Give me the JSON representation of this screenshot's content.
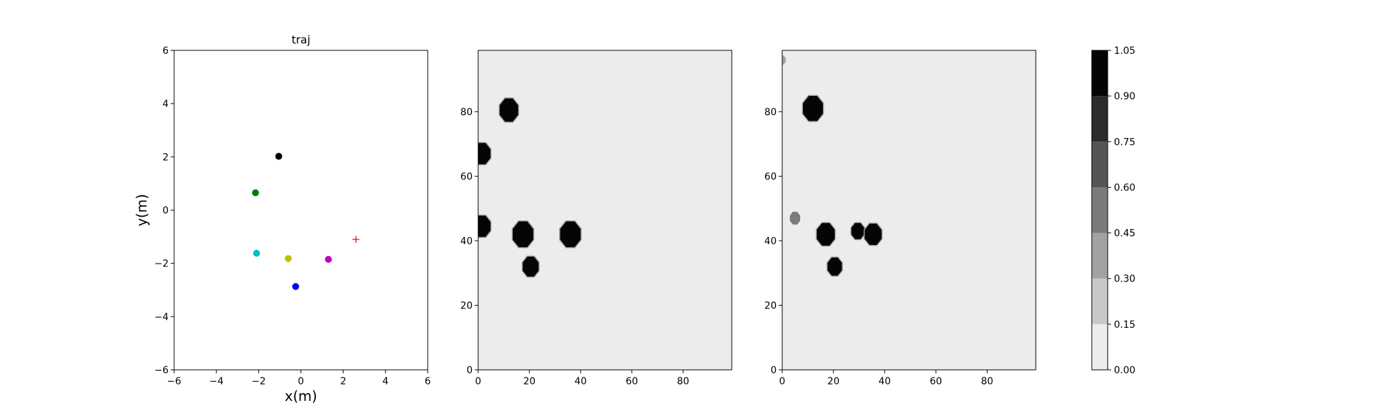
{
  "chart_data": [
    {
      "type": "scatter",
      "title": "traj",
      "xlabel": "x(m)",
      "ylabel": "y(m)",
      "xlim": [
        -6,
        6
      ],
      "ylim": [
        -6,
        6
      ],
      "xticks": [
        -6,
        -4,
        -2,
        0,
        2,
        4,
        6
      ],
      "yticks": [
        -6,
        -4,
        -2,
        0,
        2,
        4,
        6
      ],
      "xtick_labels": [
        "−6",
        "−4",
        "−2",
        "0",
        "2",
        "4",
        "6"
      ],
      "ytick_labels": [
        "−6",
        "−4",
        "−2",
        "0",
        "2",
        "4",
        "6"
      ],
      "grid": false,
      "points": [
        {
          "x": -1.05,
          "y": 2.02,
          "color": "#000000",
          "marker": "circle"
        },
        {
          "x": -2.15,
          "y": 0.65,
          "color": "#008000",
          "marker": "circle"
        },
        {
          "x": -2.1,
          "y": -1.62,
          "color": "#00bfbf",
          "marker": "circle"
        },
        {
          "x": -0.6,
          "y": -1.82,
          "color": "#bfbf00",
          "marker": "circle"
        },
        {
          "x": -0.25,
          "y": -2.87,
          "color": "#0000ff",
          "marker": "circle"
        },
        {
          "x": 1.3,
          "y": -1.85,
          "color": "#bf00bf",
          "marker": "circle"
        },
        {
          "x": 2.6,
          "y": -1.1,
          "color": "#ff0000",
          "marker": "plus"
        }
      ]
    },
    {
      "type": "heatmap",
      "title": "",
      "xlabel": "",
      "ylabel": "",
      "xlim": [
        0,
        99
      ],
      "ylim": [
        0,
        99
      ],
      "xticks": [
        0,
        20,
        40,
        60,
        80
      ],
      "yticks": [
        0,
        20,
        40,
        60,
        80
      ],
      "xtick_labels": [
        "0",
        "20",
        "40",
        "60",
        "80"
      ],
      "ytick_labels": [
        "0",
        "20",
        "40",
        "60",
        "80"
      ],
      "background_value": 0.07,
      "blobs": [
        {
          "x": 12,
          "y": 80.5,
          "r": 3.6,
          "value": 1.0
        },
        {
          "x": 1.5,
          "y": 67,
          "r": 3.3,
          "value": 1.0
        },
        {
          "x": 1.5,
          "y": 44.5,
          "r": 3.3,
          "value": 1.0
        },
        {
          "x": 17.5,
          "y": 42,
          "r": 4.0,
          "value": 1.0
        },
        {
          "x": 36,
          "y": 42,
          "r": 4.0,
          "value": 1.0
        },
        {
          "x": 20.5,
          "y": 32,
          "r": 3.1,
          "value": 1.0
        }
      ]
    },
    {
      "type": "heatmap",
      "title": "",
      "xlabel": "",
      "ylabel": "",
      "xlim": [
        0,
        99
      ],
      "ylim": [
        0,
        99
      ],
      "xticks": [
        0,
        20,
        40,
        60,
        80
      ],
      "yticks": [
        0,
        20,
        40,
        60,
        80
      ],
      "xtick_labels": [
        "0",
        "20",
        "40",
        "60",
        "80"
      ],
      "ytick_labels": [
        "0",
        "20",
        "40",
        "60",
        "80"
      ],
      "background_value": 0.07,
      "blobs": [
        {
          "x": 12,
          "y": 81,
          "r": 3.9,
          "value": 1.0
        },
        {
          "x": 0,
          "y": 96,
          "r": 1.4,
          "value": 0.35
        },
        {
          "x": 5,
          "y": 47,
          "r": 2.0,
          "value": 0.55
        },
        {
          "x": 17,
          "y": 42,
          "r": 3.5,
          "value": 1.0
        },
        {
          "x": 29.5,
          "y": 43,
          "r": 2.5,
          "value": 0.95
        },
        {
          "x": 35.5,
          "y": 42,
          "r": 3.3,
          "value": 1.0
        },
        {
          "x": 20.5,
          "y": 32,
          "r": 2.8,
          "value": 1.0
        }
      ]
    },
    {
      "type": "colorbar",
      "levels": [
        0.0,
        0.15,
        0.3,
        0.45,
        0.6,
        0.75,
        0.9,
        1.05
      ],
      "level_labels": [
        "0.00",
        "0.15",
        "0.30",
        "0.45",
        "0.60",
        "0.75",
        "0.90",
        "1.05"
      ],
      "colors": [
        "#ececec",
        "#c8c8c8",
        "#a2a2a2",
        "#7b7b7b",
        "#545454",
        "#2c2c2c",
        "#050505"
      ]
    }
  ]
}
